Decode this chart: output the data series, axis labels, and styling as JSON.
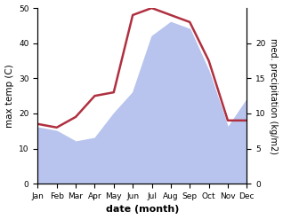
{
  "months": [
    "Jan",
    "Feb",
    "Mar",
    "Apr",
    "May",
    "Jun",
    "Jul",
    "Aug",
    "Sep",
    "Oct",
    "Nov",
    "Dec"
  ],
  "month_positions": [
    0,
    1,
    2,
    3,
    4,
    5,
    6,
    7,
    8,
    9,
    10,
    11
  ],
  "temperature": [
    17,
    16,
    19,
    25,
    26,
    48,
    50,
    48,
    46,
    35,
    18,
    18
  ],
  "precipitation": [
    8,
    7.5,
    6,
    6.5,
    10,
    13,
    21,
    23,
    22,
    16,
    8,
    12
  ],
  "temp_color": "#b03040",
  "precip_fill_color": "#b8c4ee",
  "temp_ylim": [
    0,
    50
  ],
  "precip_ylim": [
    0,
    25
  ],
  "temp_yticks": [
    0,
    10,
    20,
    30,
    40,
    50
  ],
  "precip_yticks": [
    0,
    5,
    10,
    15,
    20
  ],
  "xlabel": "date (month)",
  "ylabel_left": "max temp (C)",
  "ylabel_right": "med. precipitation (kg/m2)",
  "background_color": "#ffffff"
}
